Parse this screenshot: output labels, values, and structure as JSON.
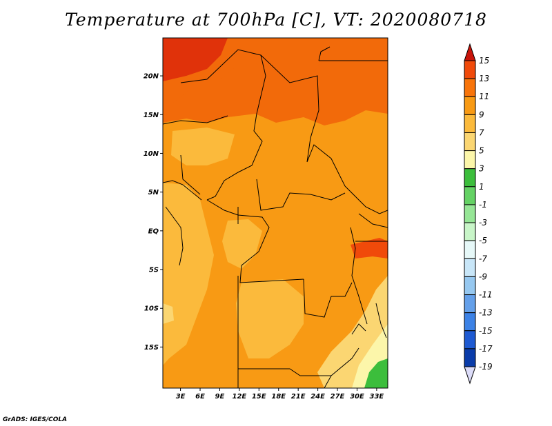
{
  "title": "Temperature at 700hPa [C], VT: 2020080718",
  "credit": "GrADS: IGES/COLA",
  "lat_ticks": [
    {
      "label": "20N",
      "value": 20
    },
    {
      "label": "15N",
      "value": 15
    },
    {
      "label": "10N",
      "value": 10
    },
    {
      "label": "5N",
      "value": 5
    },
    {
      "label": "EQ",
      "value": 0
    },
    {
      "label": "5S",
      "value": -5
    },
    {
      "label": "10S",
      "value": -10
    },
    {
      "label": "15S",
      "value": -15
    }
  ],
  "lon_ticks": [
    {
      "label": "3E",
      "value": 3
    },
    {
      "label": "6E",
      "value": 6
    },
    {
      "label": "9E",
      "value": 9
    },
    {
      "label": "12E",
      "value": 12
    },
    {
      "label": "15E",
      "value": 15
    },
    {
      "label": "18E",
      "value": 18
    },
    {
      "label": "21E",
      "value": 21
    },
    {
      "label": "24E",
      "value": 24
    },
    {
      "label": "27E",
      "value": 27
    },
    {
      "label": "30E",
      "value": 30
    },
    {
      "label": "33E",
      "value": 33
    }
  ],
  "map_extent": {
    "lon_min": 0.3,
    "lon_max": 34.7,
    "lat_min": -20.3,
    "lat_max": 24.9
  },
  "colorbar": {
    "labels": [
      "15",
      "13",
      "11",
      "9",
      "7",
      "5",
      "3",
      "1",
      "-1",
      "-3",
      "-5",
      "-7",
      "-9",
      "-11",
      "-13",
      "-15",
      "-17",
      "-19"
    ],
    "colors": [
      "#dc1e0a",
      "#f04a0a",
      "#f8740a",
      "#f89a14",
      "#fbba3c",
      "#fbd672",
      "#fcf6aa",
      "#3cbe3c",
      "#64d264",
      "#96e696",
      "#c8f5c8",
      "#e6f8f8",
      "#c8e6f8",
      "#96c8f0",
      "#64a0ea",
      "#3c82e6",
      "#1e5ad2",
      "#0a3caa",
      "#0a148c"
    ],
    "top_arrow_color": "#c8140a",
    "bottom_arrow_color": "#dcdcf8"
  },
  "regions": [
    {
      "name": "north-hot-core",
      "color": "#e0320a"
    },
    {
      "name": "north-warm",
      "color": "#f26a0a"
    },
    {
      "name": "sahel-band",
      "color": "#f89a14"
    },
    {
      "name": "tropical-mild",
      "color": "#fbba3c"
    },
    {
      "name": "southeast-cool",
      "color": "#fbd672"
    },
    {
      "name": "south-green",
      "color": "#3cbe3c"
    },
    {
      "name": "great-lakes-hot",
      "color": "#f04a0a"
    }
  ]
}
